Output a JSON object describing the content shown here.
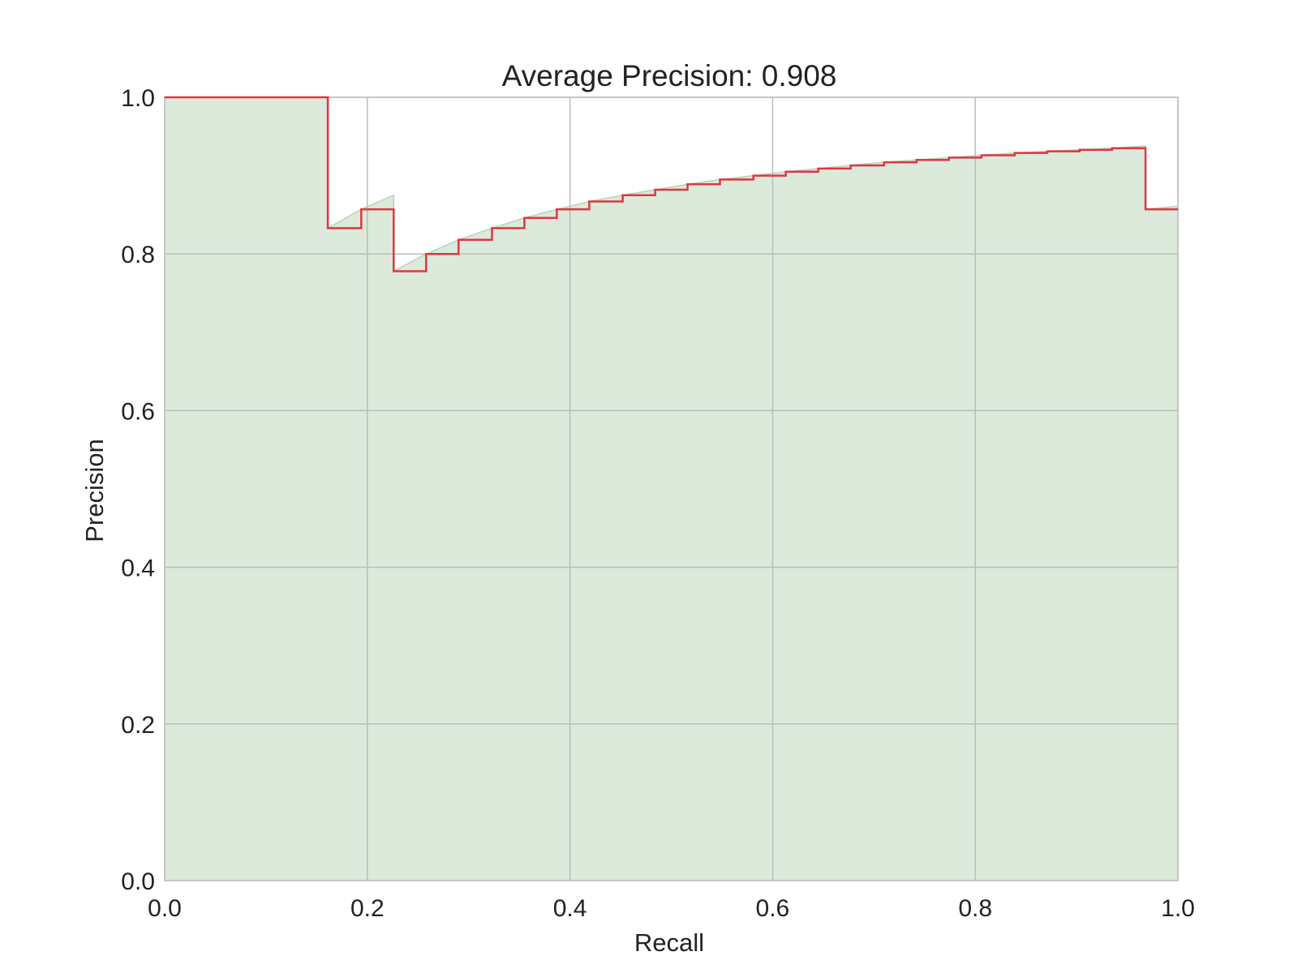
{
  "chart_data": {
    "type": "area",
    "title": "Average Precision: 0.908",
    "xlabel": "Recall",
    "ylabel": "Precision",
    "xlim": [
      0.0,
      1.0
    ],
    "ylim": [
      0.0,
      1.0
    ],
    "grid": true,
    "x_ticks": [
      0.0,
      0.2,
      0.4,
      0.6,
      0.8,
      1.0
    ],
    "x_tick_labels": [
      "0.0",
      "0.2",
      "0.4",
      "0.6",
      "0.8",
      "1.0"
    ],
    "y_ticks": [
      0.0,
      0.2,
      0.4,
      0.6,
      0.8,
      1.0
    ],
    "y_tick_labels": [
      "0.0",
      "0.2",
      "0.4",
      "0.6",
      "0.8",
      "1.0"
    ],
    "series": [
      {
        "style": "step-post",
        "color": "#e0363f",
        "x": [
          0.0,
          0.161,
          0.194,
          0.226,
          0.258,
          0.29,
          0.323,
          0.355,
          0.387,
          0.419,
          0.452,
          0.484,
          0.516,
          0.548,
          0.581,
          0.613,
          0.645,
          0.677,
          0.71,
          0.742,
          0.774,
          0.806,
          0.839,
          0.871,
          0.903,
          0.935,
          0.968,
          1.0
        ],
        "y": [
          1.0,
          0.833,
          0.857,
          0.778,
          0.8,
          0.818,
          0.833,
          0.846,
          0.857,
          0.867,
          0.875,
          0.882,
          0.889,
          0.895,
          0.9,
          0.905,
          0.909,
          0.913,
          0.917,
          0.92,
          0.923,
          0.926,
          0.929,
          0.931,
          0.933,
          0.935,
          0.857,
          0.857
        ]
      },
      {
        "style": "filled-area",
        "color": "#dbeadb",
        "x": [
          0.0,
          0.161,
          0.161,
          0.194,
          0.226,
          0.226,
          0.258,
          0.29,
          0.323,
          0.355,
          0.387,
          0.419,
          0.452,
          0.484,
          0.516,
          0.548,
          0.581,
          0.613,
          0.645,
          0.677,
          0.71,
          0.742,
          0.774,
          0.806,
          0.839,
          0.871,
          0.903,
          0.935,
          0.968,
          0.968,
          1.0
        ],
        "y": [
          1.0,
          1.0,
          0.833,
          0.857,
          0.875,
          0.778,
          0.8,
          0.818,
          0.833,
          0.846,
          0.857,
          0.867,
          0.875,
          0.882,
          0.889,
          0.895,
          0.9,
          0.905,
          0.909,
          0.913,
          0.917,
          0.92,
          0.923,
          0.926,
          0.929,
          0.931,
          0.933,
          0.935,
          0.938,
          0.857,
          0.861
        ]
      }
    ]
  }
}
